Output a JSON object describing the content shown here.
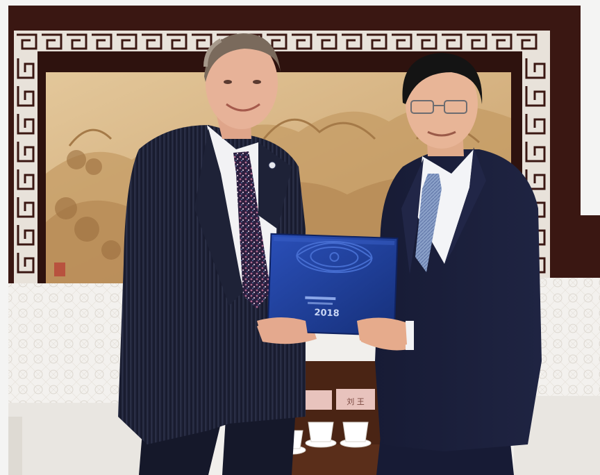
{
  "photo": {
    "kind": "photograph",
    "book": {
      "year": "2018"
    },
    "colors": {
      "wall": "#f4f4f3",
      "frame": "#3a1712",
      "lattice": "#e8e2da",
      "painting": "#d8b889",
      "sofa": "#f1efec",
      "suit": "#1a1d33",
      "book_blue": "#203f9a",
      "table": "#4a2414"
    }
  }
}
